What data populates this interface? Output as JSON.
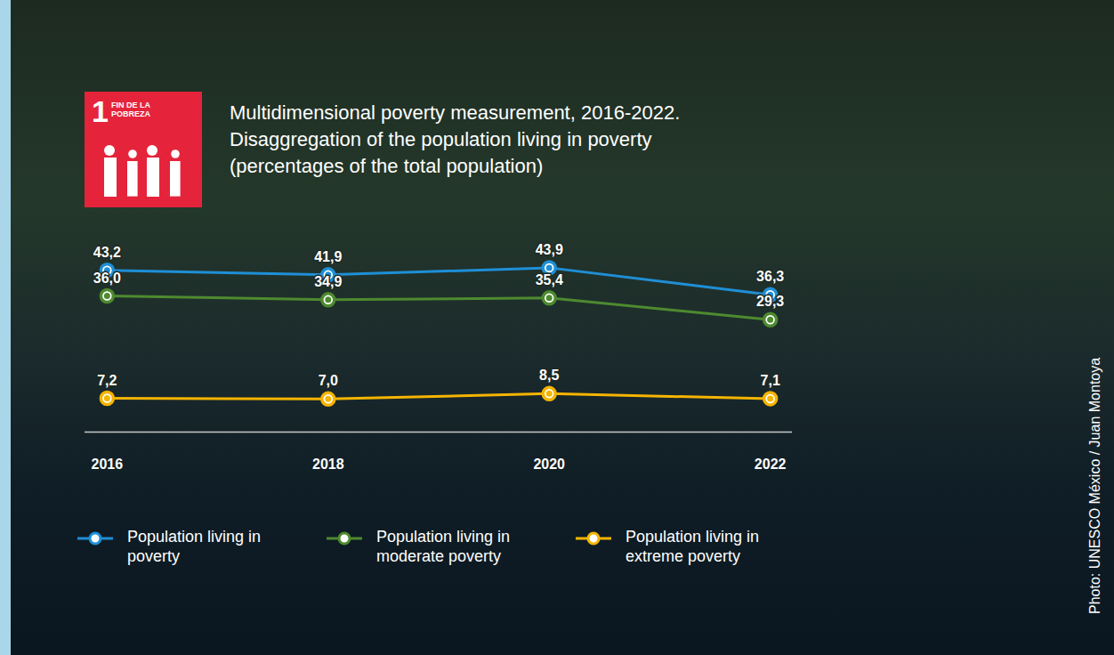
{
  "chart_data": {
    "type": "line",
    "title": "Multidimensional poverty measurement, 2016-2022.",
    "subtitle": "Disaggregation of the population living in poverty (percentages of the total population)",
    "annotations": [
      "1",
      "FIN DE LA POBREZA",
      "Photo: UNESCO México / Juan Montoya"
    ],
    "x": [
      2016,
      2018,
      2020,
      2022
    ],
    "xlim": [
      2015.8,
      2022.2
    ],
    "xticks": [
      2016,
      2018,
      2020,
      2022
    ],
    "ylim": [
      -2.3,
      49
    ],
    "tick_labels": "x",
    "grid": false,
    "legend": "bottom",
    "data_labels": true,
    "marker": "circle",
    "series": [
      {
        "name": "Population living in poverty",
        "color": "#1f8fd6",
        "values": [
          43.2,
          41.9,
          43.9,
          36.3
        ],
        "value_labels": [
          "43,2",
          "41,9",
          "43,9",
          "36,3"
        ]
      },
      {
        "name": "Population living in moderate poverty",
        "color": "#4e8a2f",
        "values": [
          36.0,
          34.9,
          35.4,
          29.3
        ],
        "value_labels": [
          "36,0",
          "34,9",
          "35,4",
          "29,3"
        ]
      },
      {
        "name": "Population living in extreme poverty",
        "color": "#f5b400",
        "values": [
          7.2,
          7.0,
          8.5,
          7.1
        ],
        "value_labels": [
          "7,2",
          "7,0",
          "8,5",
          "7,1"
        ]
      }
    ]
  }
}
